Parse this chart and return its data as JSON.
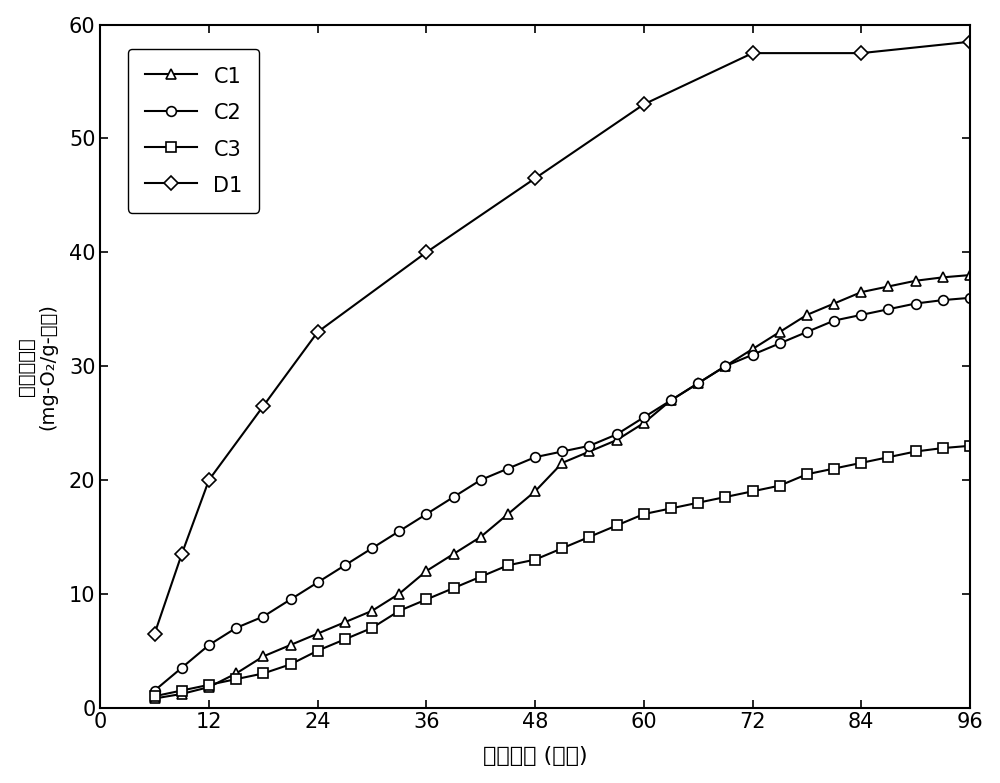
{
  "C1": {
    "x": [
      6,
      9,
      12,
      15,
      18,
      21,
      24,
      27,
      30,
      33,
      36,
      39,
      42,
      45,
      48,
      51,
      54,
      57,
      60,
      63,
      66,
      69,
      72,
      75,
      78,
      81,
      84,
      87,
      90,
      93,
      96
    ],
    "y": [
      0.8,
      1.2,
      1.8,
      3.0,
      4.5,
      5.5,
      6.5,
      7.5,
      8.5,
      10.0,
      12.0,
      13.5,
      15.0,
      17.0,
      19.0,
      21.5,
      22.5,
      23.5,
      25.0,
      27.0,
      28.5,
      30.0,
      31.5,
      33.0,
      34.5,
      35.5,
      36.5,
      37.0,
      37.5,
      37.8,
      38.0
    ]
  },
  "C2": {
    "x": [
      6,
      9,
      12,
      15,
      18,
      21,
      24,
      27,
      30,
      33,
      36,
      39,
      42,
      45,
      48,
      51,
      54,
      57,
      60,
      63,
      66,
      69,
      72,
      75,
      78,
      81,
      84,
      87,
      90,
      93,
      96
    ],
    "y": [
      1.5,
      3.5,
      5.5,
      7.0,
      8.0,
      9.5,
      11.0,
      12.5,
      14.0,
      15.5,
      17.0,
      18.5,
      20.0,
      21.0,
      22.0,
      22.5,
      23.0,
      24.0,
      25.5,
      27.0,
      28.5,
      30.0,
      31.0,
      32.0,
      33.0,
      34.0,
      34.5,
      35.0,
      35.5,
      35.8,
      36.0
    ]
  },
  "C3": {
    "x": [
      6,
      9,
      12,
      15,
      18,
      21,
      24,
      27,
      30,
      33,
      36,
      39,
      42,
      45,
      48,
      51,
      54,
      57,
      60,
      63,
      66,
      69,
      72,
      75,
      78,
      81,
      84,
      87,
      90,
      93,
      96
    ],
    "y": [
      1.0,
      1.5,
      2.0,
      2.5,
      3.0,
      3.8,
      5.0,
      6.0,
      7.0,
      8.5,
      9.5,
      10.5,
      11.5,
      12.5,
      13.0,
      14.0,
      15.0,
      16.0,
      17.0,
      17.5,
      18.0,
      18.5,
      19.0,
      19.5,
      20.5,
      21.0,
      21.5,
      22.0,
      22.5,
      22.8,
      23.0
    ]
  },
  "D1": {
    "x": [
      6,
      9,
      12,
      18,
      24,
      36,
      48,
      60,
      72,
      84,
      96
    ],
    "y": [
      6.5,
      13.5,
      20.0,
      26.5,
      33.0,
      40.0,
      46.5,
      53.0,
      57.5,
      57.5,
      58.5
    ]
  },
  "xlabel": "培养时间 (小时)",
  "ylabel_top": "累积耗氧量",
  "ylabel_bottom": "(mg-O₂/g-干基)",
  "xlim": [
    0,
    96
  ],
  "ylim": [
    0,
    60
  ],
  "xticks": [
    0,
    12,
    24,
    36,
    48,
    60,
    72,
    84,
    96
  ],
  "yticks": [
    0,
    10,
    20,
    30,
    40,
    50,
    60
  ],
  "linewidth": 1.5,
  "markersize": 7,
  "background_color": "#ffffff"
}
